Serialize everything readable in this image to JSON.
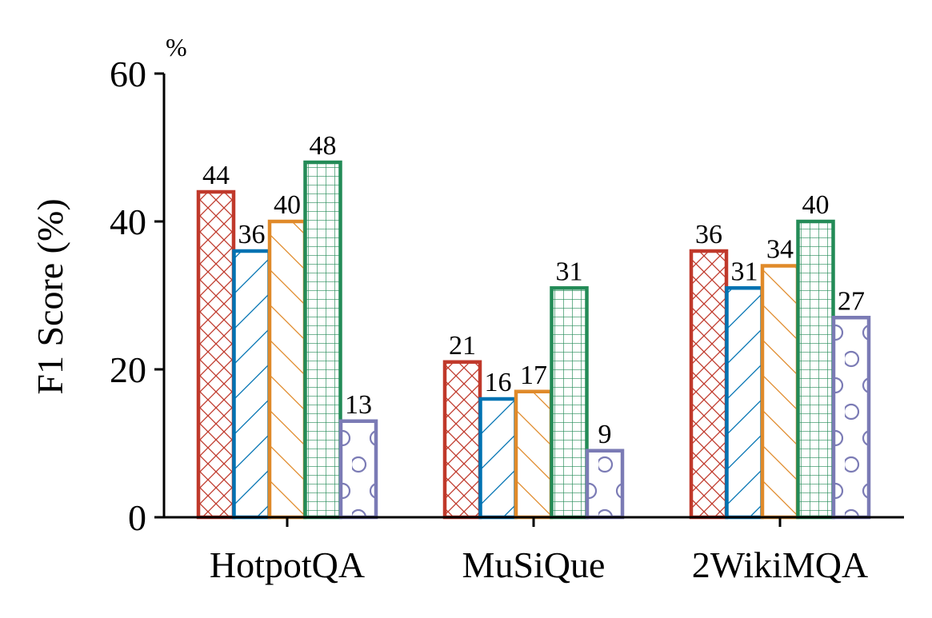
{
  "chart_data": {
    "type": "bar",
    "title": "",
    "xlabel": "",
    "ylabel": "F1 Score (%)",
    "y_unit": "%",
    "ylim": [
      0,
      60
    ],
    "yticks": [
      0,
      20,
      40,
      60
    ],
    "categories": [
      "HotpotQA",
      "MuSiQue",
      "2WikiMQA"
    ],
    "legend": false,
    "grid": false,
    "series": [
      {
        "name": "series-1",
        "color": "#c0392b",
        "pattern": "crosshatch",
        "values": [
          44,
          21,
          36
        ]
      },
      {
        "name": "series-2",
        "color": "#0072b2",
        "pattern": "forward-slash",
        "values": [
          36,
          16,
          31
        ]
      },
      {
        "name": "series-3",
        "color": "#e08a2a",
        "pattern": "back-slash",
        "values": [
          40,
          17,
          34
        ]
      },
      {
        "name": "series-4",
        "color": "#238b57",
        "pattern": "grid",
        "values": [
          48,
          31,
          40
        ]
      },
      {
        "name": "series-5",
        "color": "#7b7bb5",
        "pattern": "circles",
        "values": [
          13,
          9,
          27
        ]
      }
    ]
  }
}
